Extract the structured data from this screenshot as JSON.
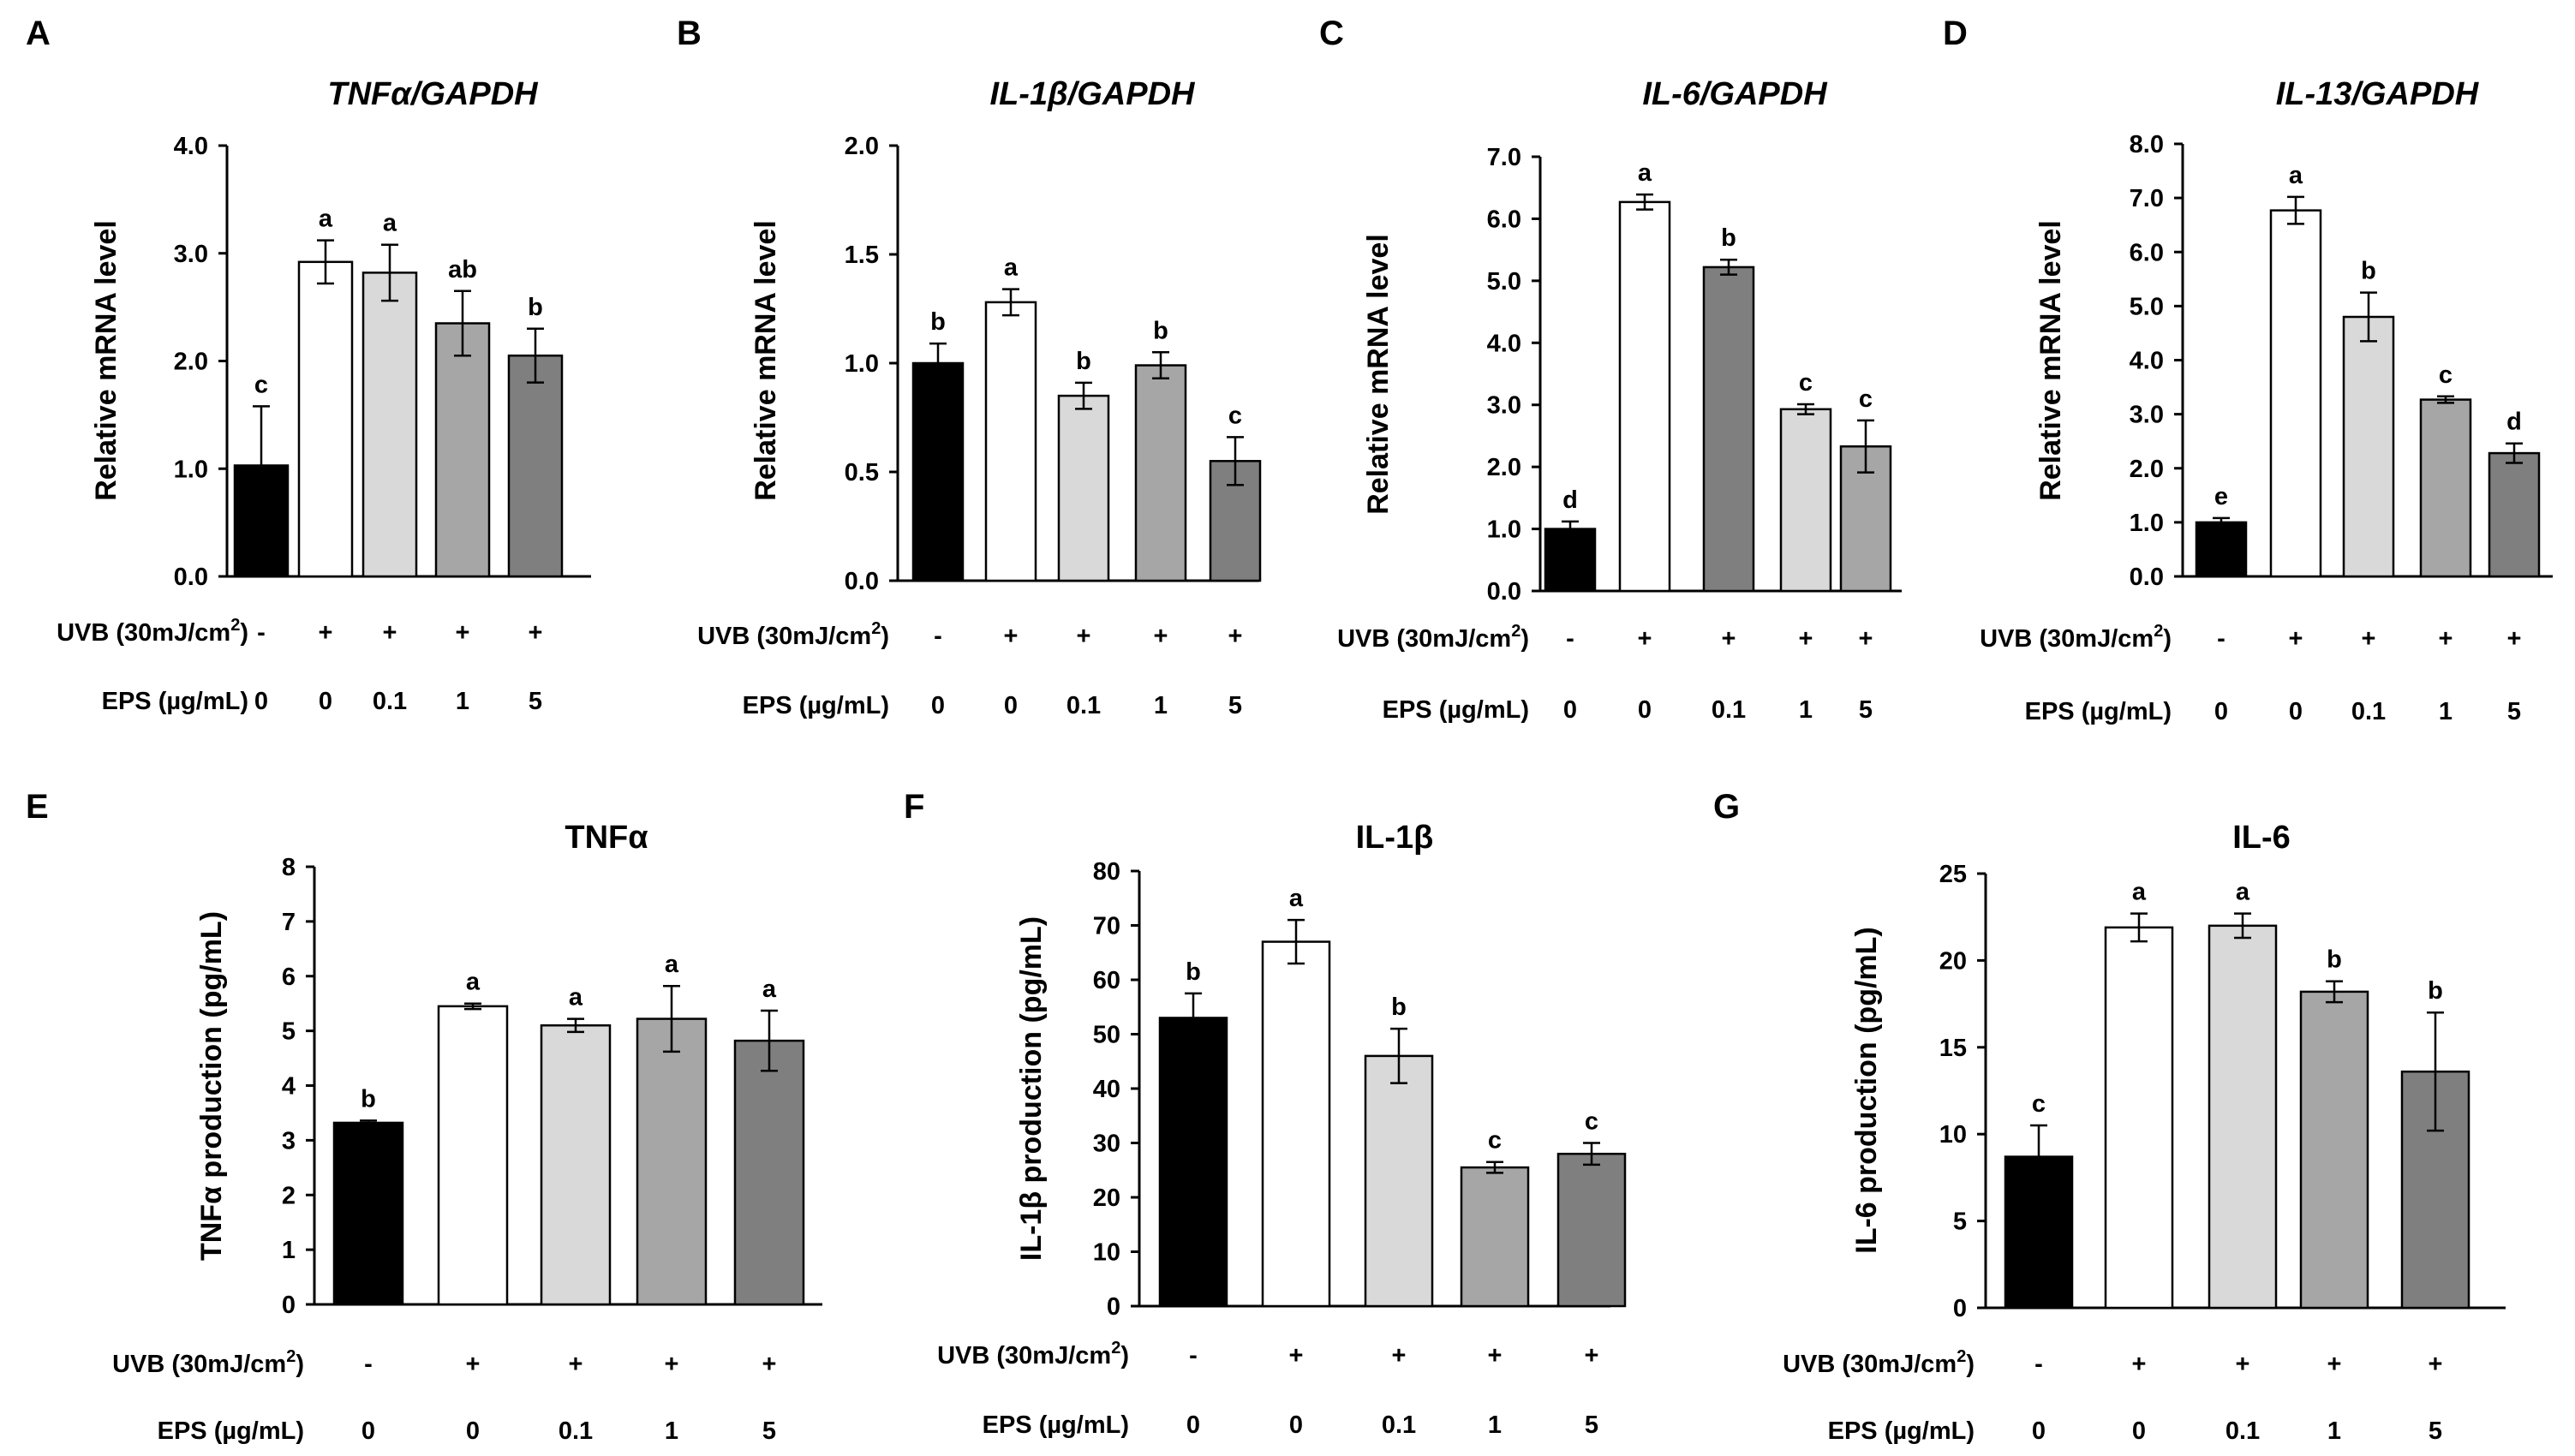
{
  "figure": {
    "conditions": {
      "uvb_label": "UVB (30mJ/cm",
      "uvb_sup": "2",
      "uvb_close": ")",
      "uvb_values": [
        "-",
        "+",
        "+",
        "+",
        "+"
      ],
      "eps_label": "EPS (µg/mL)",
      "eps_values": [
        "0",
        "0",
        "0.1",
        "1",
        "5"
      ]
    },
    "colors": {
      "bar_fills": [
        "#000000",
        "#ffffff",
        "#d9d9d9",
        "#a6a6a6",
        "#7f7f7f"
      ],
      "bar_fills_C": [
        "#000000",
        "#ffffff",
        "#7f7f7f",
        "#d9d9d9",
        "#a6a6a6"
      ],
      "stroke": "#000000"
    }
  },
  "chart_data": [
    {
      "panel": "A",
      "type": "bar",
      "title": "TNFα/GAPDH",
      "title_italic": true,
      "ylabel": "Relative mRNA level",
      "ylim": [
        0,
        4.0
      ],
      "yticks": [
        "0.0",
        "1.0",
        "2.0",
        "3.0",
        "4.0"
      ],
      "categories": [
        "UVB - / EPS 0",
        "UVB + / EPS 0",
        "UVB + / EPS 0.1",
        "UVB + / EPS 1",
        "UVB + / EPS 5"
      ],
      "values": [
        1.03,
        2.92,
        2.82,
        2.35,
        2.05
      ],
      "errors": [
        0.55,
        0.2,
        0.26,
        0.3,
        0.25
      ],
      "significance": [
        "c",
        "a",
        "a",
        "ab",
        "b"
      ]
    },
    {
      "panel": "B",
      "type": "bar",
      "title": "IL-1β/GAPDH",
      "title_italic": true,
      "ylabel": "Relative mRNA level",
      "ylim": [
        0,
        2.0
      ],
      "yticks": [
        "0.0",
        "0.5",
        "1.0",
        "1.5",
        "2.0"
      ],
      "categories": [
        "UVB - / EPS 0",
        "UVB + / EPS 0",
        "UVB + / EPS 0.1",
        "UVB + / EPS 1",
        "UVB + / EPS 5"
      ],
      "values": [
        1.0,
        1.28,
        0.85,
        0.99,
        0.55
      ],
      "errors": [
        0.09,
        0.06,
        0.06,
        0.06,
        0.11
      ],
      "significance": [
        "b",
        "a",
        "b",
        "b",
        "c"
      ]
    },
    {
      "panel": "C",
      "type": "bar",
      "title": "IL-6/GAPDH",
      "title_italic": true,
      "ylabel": "Relative mRNA level",
      "ylim": [
        0,
        7.0
      ],
      "yticks": [
        "0.0",
        "1.0",
        "2.0",
        "3.0",
        "4.0",
        "5.0",
        "6.0",
        "7.0"
      ],
      "categories": [
        "UVB - / EPS 0",
        "UVB + / EPS 0",
        "UVB + / EPS 0.1",
        "UVB + / EPS 1",
        "UVB + / EPS 5"
      ],
      "values": [
        1.0,
        6.27,
        5.22,
        2.93,
        2.33
      ],
      "errors": [
        0.12,
        0.12,
        0.12,
        0.08,
        0.42
      ],
      "significance": [
        "d",
        "a",
        "b",
        "c",
        "c"
      ]
    },
    {
      "panel": "D",
      "type": "bar",
      "title": "IL-13/GAPDH",
      "title_italic": true,
      "ylabel": "Relative mRNA level",
      "ylim": [
        0,
        8.0
      ],
      "yticks": [
        "0.0",
        "1.0",
        "2.0",
        "3.0",
        "4.0",
        "5.0",
        "6.0",
        "7.0",
        "8.0"
      ],
      "categories": [
        "UVB - / EPS 0",
        "UVB + / EPS 0",
        "UVB + / EPS 0.1",
        "UVB + / EPS 1",
        "UVB + / EPS 5"
      ],
      "values": [
        1.0,
        6.77,
        4.8,
        3.27,
        2.28
      ],
      "errors": [
        0.08,
        0.25,
        0.45,
        0.06,
        0.18
      ],
      "significance": [
        "e",
        "a",
        "b",
        "c",
        "d"
      ]
    },
    {
      "panel": "E",
      "type": "bar",
      "title": "TNFα",
      "title_italic": false,
      "ylabel": "TNFα production (pg/mL)",
      "ylim": [
        0,
        8
      ],
      "yticks": [
        "0",
        "1",
        "2",
        "3",
        "4",
        "5",
        "6",
        "7",
        "8"
      ],
      "categories": [
        "UVB - / EPS 0",
        "UVB + / EPS 0",
        "UVB + / EPS 0.1",
        "UVB + / EPS 1",
        "UVB + / EPS 5"
      ],
      "values": [
        3.32,
        5.45,
        5.1,
        5.22,
        4.82
      ],
      "errors": [
        0.04,
        0.05,
        0.12,
        0.6,
        0.55
      ],
      "significance": [
        "b",
        "a",
        "a",
        "a",
        "a"
      ]
    },
    {
      "panel": "F",
      "type": "bar",
      "title": "IL-1β",
      "title_italic": false,
      "ylabel": "IL-1β production (pg/mL)",
      "ylim": [
        0,
        80
      ],
      "yticks": [
        "0",
        "10",
        "20",
        "30",
        "40",
        "50",
        "60",
        "70",
        "80"
      ],
      "categories": [
        "UVB - / EPS 0",
        "UVB + / EPS 0",
        "UVB + / EPS 0.1",
        "UVB + / EPS 1",
        "UVB + / EPS 5"
      ],
      "values": [
        53,
        67,
        46,
        25.5,
        28
      ],
      "errors": [
        4.5,
        4,
        5,
        1,
        2
      ],
      "significance": [
        "b",
        "a",
        "b",
        "c",
        "c"
      ]
    },
    {
      "panel": "G",
      "type": "bar",
      "title": "IL-6",
      "title_italic": false,
      "ylabel": "IL-6 production (pg/mL)",
      "ylim": [
        0,
        25
      ],
      "yticks": [
        "0",
        "5",
        "10",
        "15",
        "20",
        "25"
      ],
      "categories": [
        "UVB - / EPS 0",
        "UVB + / EPS 0",
        "UVB + / EPS 0.1",
        "UVB + / EPS 1",
        "UVB + / EPS 5"
      ],
      "values": [
        8.7,
        21.9,
        22.0,
        18.2,
        13.6
      ],
      "errors": [
        1.8,
        0.8,
        0.7,
        0.6,
        3.4
      ],
      "significance": [
        "c",
        "a",
        "a",
        "b",
        "b"
      ]
    }
  ]
}
